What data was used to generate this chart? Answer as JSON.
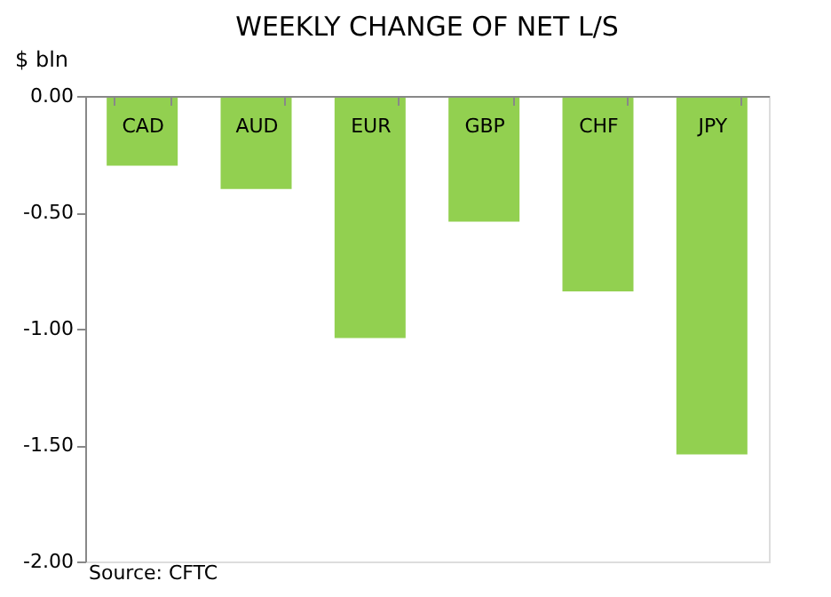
{
  "chart_data": {
    "type": "bar",
    "title": "WEEKLY CHANGE OF NET L/S",
    "ylabel": "$ bln",
    "categories": [
      "CAD",
      "AUD",
      "EUR",
      "GBP",
      "CHF",
      "JPY"
    ],
    "values": [
      -0.3,
      -0.4,
      -1.04,
      -0.54,
      -0.84,
      -1.54
    ],
    "color": "#92d050",
    "ylim": [
      -2.0,
      0.0
    ],
    "yticks": [
      {
        "value": -2.0,
        "label": "-2.00"
      },
      {
        "value": -1.5,
        "label": "-1.50"
      },
      {
        "value": -1.0,
        "label": "-1.00"
      },
      {
        "value": -0.5,
        "label": "-0.50"
      },
      {
        "value": 0.0,
        "label": "0.00"
      }
    ],
    "annotations": [
      "Source: CFTC"
    ],
    "grid": false
  }
}
